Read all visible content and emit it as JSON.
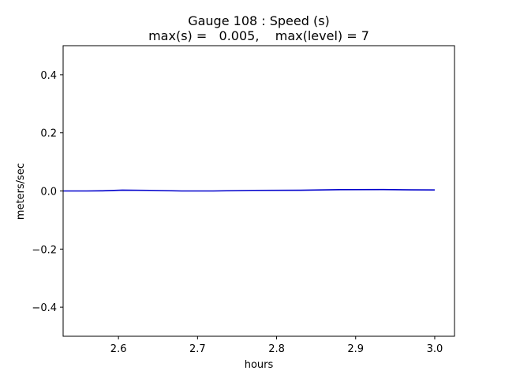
{
  "chart_data": {
    "type": "line",
    "title_line1": "Gauge 108 : Speed (s)",
    "title_line2": "max(s) =   0.005,    max(level) = 7",
    "xlabel": "hours",
    "ylabel": "meters/sec",
    "xlim": [
      2.53,
      3.025
    ],
    "ylim": [
      -0.5,
      0.5
    ],
    "xticks": [
      2.6,
      2.7,
      2.8,
      2.9,
      3.0
    ],
    "xtick_labels": [
      "2.6",
      "2.7",
      "2.8",
      "2.9",
      "3.0"
    ],
    "yticks": [
      0.4,
      0.2,
      0.0,
      -0.2,
      -0.4
    ],
    "ytick_labels": [
      "0.4",
      "0.2",
      "0.0",
      "−0.2",
      "−0.4"
    ],
    "grid": false,
    "series": [
      {
        "color": "#0000cc",
        "x": [
          2.53,
          2.56,
          2.58,
          2.605,
          2.64,
          2.68,
          2.72,
          2.77,
          2.83,
          2.88,
          2.935,
          2.97,
          3.0
        ],
        "y": [
          0.0,
          0.0,
          0.0005,
          0.003,
          0.002,
          0.0,
          0.0,
          0.002,
          0.0025,
          0.0045,
          0.005,
          0.004,
          0.0035
        ]
      }
    ]
  }
}
